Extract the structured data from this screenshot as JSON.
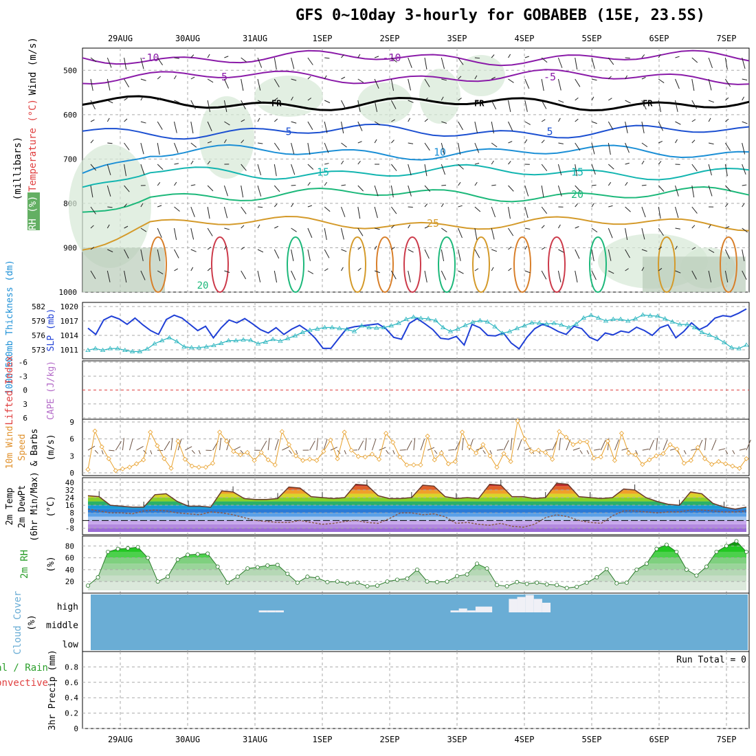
{
  "title": "GFS 0~10day 3-hourly for GOBABEB (15E, 23.5S)",
  "chart_data": [
    {
      "type": "contour",
      "panel": "upper-air",
      "ylabel_parts": [
        {
          "text": "RH (%)",
          "color": "#2a9e2a"
        },
        {
          "text": "Temperature (°C)",
          "color": "#e04040"
        },
        {
          "text": "Wind (m/s)",
          "color": "#000000"
        }
      ],
      "ylabel2": "(millibars)",
      "y_ticks": [
        "500",
        "600",
        "700",
        "800",
        "900",
        "1000"
      ],
      "ylim": [
        1000,
        450
      ],
      "top_dates": [
        "29AUG",
        "30AUG",
        "31AUG",
        "1SEP",
        "2SEP",
        "3SEP",
        "4SEP",
        "5SEP",
        "6SEP",
        "7SEP"
      ],
      "isotherms": [
        {
          "label": "-10",
          "level": 472,
          "color": "#8a1aa8"
        },
        {
          "label": "-5",
          "level": 515,
          "color": "#8a1aa8"
        },
        {
          "label": "FR",
          "level": 575,
          "color": "#000000"
        },
        {
          "label": "5",
          "level": 638,
          "color": "#1b4fd1"
        },
        {
          "label": "10",
          "level": 685,
          "color": "#1b8fd6"
        },
        {
          "label": "15",
          "level": 730,
          "color": "#12b5b0"
        },
        {
          "label": "20",
          "level": 780,
          "color": "#1cb87a"
        },
        {
          "label": "25",
          "level": 845,
          "color": "#d49a2a"
        }
      ],
      "rh_labels": [
        "10",
        "30",
        "10",
        "10",
        "30",
        "10",
        "10",
        "10",
        "10",
        "30"
      ],
      "bottom_label_20": "20"
    },
    {
      "type": "line",
      "panel": "thickness-slp",
      "ylabel_left": "1000-500mb Thickness (dm)",
      "ylabel_right": "SLP (mb)",
      "left_ticks": [
        "582",
        "579",
        "576",
        "573"
      ],
      "right_ticks": [
        "1020",
        "1017",
        "1014",
        "1011"
      ],
      "ylim_slp": [
        1010,
        1020
      ],
      "ylim_thk": [
        572,
        583
      ],
      "series": [
        {
          "name": "SLP (mb)",
          "color": "#1f3fd6",
          "values": [
            1015.5,
            1014.2,
            1017.2,
            1018.0,
            1017.4,
            1016.3,
            1017.6,
            1016.2,
            1015.0,
            1014.2,
            1017.3,
            1018.2,
            1017.6,
            1016.3,
            1015.0,
            1015.9,
            1013.5,
            1015.6,
            1017.2,
            1016.6,
            1017.5,
            1016.4,
            1015.2,
            1014.5,
            1015.6,
            1014.2,
            1015.3,
            1016.1,
            1015.0,
            1013.4,
            1011.3,
            1011.3,
            1013.4,
            1015.4,
            1015.8,
            1016.0,
            1016.2,
            1016.4,
            1015.4,
            1013.6,
            1013.2,
            1016.5,
            1017.5,
            1016.4,
            1015.2,
            1013.4,
            1013.2,
            1013.8,
            1012.0,
            1016.3,
            1015.6,
            1014.0,
            1013.9,
            1014.5,
            1012.4,
            1011.2,
            1013.6,
            1015.4,
            1016.3,
            1015.7,
            1014.8,
            1014.2,
            1015.9,
            1015.4,
            1013.6,
            1012.9,
            1014.5,
            1014.1,
            1014.9,
            1014.6,
            1015.7,
            1015.0,
            1014.0,
            1015.6,
            1016.2,
            1013.5,
            1014.8,
            1016.6,
            1015.2,
            1016.0,
            1017.6,
            1018.1,
            1017.9,
            1018.6,
            1019.5
          ]
        },
        {
          "name": "1000-500mb Thickness (dm)",
          "color": "#2ab5bf",
          "values": [
            573.0,
            573.4,
            573.0,
            573.4,
            573.4,
            573.0,
            572.7,
            572.7,
            573.3,
            574.5,
            575.2,
            575.9,
            575.0,
            573.8,
            573.6,
            573.6,
            573.8,
            574.1,
            574.6,
            575.2,
            575.2,
            575.4,
            575.3,
            574.5,
            574.9,
            575.5,
            575.1,
            575.7,
            576.3,
            577.1,
            577.6,
            577.9,
            578.2,
            578.2,
            578.0,
            577.8,
            577.3,
            578.6,
            578.2,
            578.1,
            578.2,
            578.6,
            579.2,
            580.1,
            580.6,
            580.3,
            580.2,
            579.8,
            578.2,
            577.3,
            577.9,
            578.7,
            579.4,
            579.8,
            579.5,
            578.4,
            576.9,
            577.3,
            578.0,
            578.6,
            579.3,
            579.2,
            579.0,
            579.2,
            578.8,
            578.2,
            579.0,
            580.4,
            581.0,
            580.4,
            579.7,
            580.1,
            580.1,
            579.7,
            580.2,
            581.1,
            580.9,
            580.8,
            580.2,
            579.5,
            578.9,
            578.9,
            578.2,
            577.1,
            576.5,
            575.8,
            574.8,
            573.6,
            573.4,
            574.2
          ]
        }
      ]
    },
    {
      "type": "line",
      "panel": "lifted-cape",
      "ylabel_left": "Lifted Index",
      "ylabel_right": "CAPE (J/kg)",
      "left_ticks": [
        "-6",
        "-3",
        "0",
        "3",
        "6"
      ],
      "ylim": [
        6,
        -6
      ],
      "series": [
        {
          "name": "Lifted Index",
          "color": "#e04040",
          "values": []
        }
      ]
    },
    {
      "type": "line",
      "panel": "wind10m",
      "ylabel_parts": [
        {
          "text": "10m Wind",
          "color": "#e0902a"
        },
        {
          "text": "Speed",
          "color": "#e0902a"
        },
        {
          "text": "& Barbs",
          "color": "#000000"
        }
      ],
      "ylabel_unit": "(m/s)",
      "left_ticks": [
        "9",
        "6",
        "3",
        "0"
      ],
      "ylim": [
        0,
        9
      ],
      "series": [
        {
          "name": "10m Wind Speed",
          "color": "#e8a02a",
          "values": [
            0.6,
            7.4,
            4.6,
            2.5,
            0.4,
            0.7,
            1.0,
            1.6,
            2.3,
            7.2,
            4.8,
            2.5,
            0.8,
            5.6,
            2.4,
            1.2,
            1.0,
            1.0,
            1.7,
            7.2,
            5.6,
            3.8,
            3.2,
            3.6,
            2.2,
            3.6,
            2.3,
            1.4,
            7.3,
            5.0,
            3.0,
            2.2,
            2.4,
            2.2,
            3.8,
            5.8,
            2.5,
            7.2,
            4.0,
            2.9,
            2.8,
            3.3,
            2.4,
            7.0,
            5.4,
            2.8,
            1.4,
            1.4,
            1.4,
            6.5,
            2.3,
            3.5,
            1.6,
            2.0,
            7.2,
            4.6,
            3.5,
            5.0,
            3.0,
            1.0,
            3.4,
            2.0,
            9.2,
            6.0,
            3.8,
            4.0,
            3.6,
            2.4,
            7.3,
            6.3,
            5.0,
            5.5,
            5.5,
            2.6,
            2.8,
            5.6,
            2.2,
            7.0,
            3.5,
            3.2,
            1.5,
            2.3,
            3.0,
            3.4,
            5.0,
            4.2,
            1.7,
            2.2,
            4.5,
            2.5,
            1.5,
            2.0,
            1.6,
            1.2,
            0.8,
            2.5
          ]
        }
      ]
    },
    {
      "type": "area",
      "panel": "temp2m",
      "ylabel_parts": [
        {
          "text": "2m Temp",
          "color": "#000000"
        },
        {
          "text": "2m DewPt",
          "color": "#000000"
        },
        {
          "text": "(6hr Min/Max)",
          "color": "#000000"
        }
      ],
      "ylabel_unit": "(°C)",
      "left_ticks": [
        "40",
        "32",
        "24",
        "16",
        "8",
        "0",
        "-8"
      ],
      "ylim": [
        -12,
        42
      ],
      "series": [
        {
          "name": "2m Temp",
          "values": [
            26,
            25,
            16,
            15,
            14,
            14,
            27,
            28,
            20,
            15,
            15,
            14,
            31,
            30,
            23,
            22,
            22,
            23,
            35,
            34,
            25,
            24,
            23,
            24,
            38,
            37,
            26,
            23,
            23,
            24,
            37,
            36,
            25,
            23,
            24,
            23,
            38,
            37,
            25,
            25,
            23,
            24,
            39,
            38,
            25,
            24,
            23,
            24,
            33,
            32,
            24,
            20,
            17,
            16,
            30,
            28,
            18,
            14,
            12,
            14
          ]
        },
        {
          "name": "2m DewPt",
          "values": [
            12,
            10,
            8,
            8,
            7,
            10,
            11,
            10,
            8,
            7,
            6,
            9,
            8,
            6,
            3,
            0,
            -1,
            -2,
            -2,
            0,
            -2,
            -4,
            -3,
            -1,
            0,
            -2,
            -3,
            2,
            8,
            8,
            6,
            7,
            4,
            -3,
            -2,
            -4,
            -5,
            -3,
            -6,
            -7,
            -4,
            3,
            6,
            4,
            0,
            -2,
            -3,
            5,
            10,
            10,
            9,
            8,
            9,
            9,
            11,
            11,
            10,
            9,
            9,
            10
          ]
        }
      ]
    },
    {
      "type": "area",
      "panel": "rh2m",
      "ylabel": "2m RH",
      "ylabel_unit": "(%)",
      "left_ticks": [
        "80",
        "60",
        "40",
        "20"
      ],
      "ylim": [
        5,
        92
      ],
      "series": [
        {
          "name": "2m RH",
          "values": [
            13,
            27,
            70,
            75,
            76,
            78,
            60,
            20,
            28,
            57,
            65,
            66,
            67,
            45,
            18,
            28,
            42,
            44,
            47,
            48,
            33,
            18,
            28,
            26,
            19,
            20,
            17,
            18,
            12,
            13,
            20,
            23,
            25,
            40,
            20,
            19,
            20,
            29,
            32,
            50,
            42,
            14,
            12,
            19,
            16,
            18,
            15,
            14,
            9,
            11,
            18,
            27,
            41,
            17,
            18,
            40,
            50,
            75,
            82,
            70,
            40,
            30,
            45,
            70,
            80,
            88,
            70
          ]
        }
      ]
    },
    {
      "type": "bar",
      "panel": "cloud",
      "ylabel": "Cloud Cover",
      "ylabel_unit": "(%)",
      "row_labels": [
        "high",
        "middle",
        "low"
      ],
      "high_cloud": [
        0,
        0,
        0,
        0,
        0,
        0,
        0,
        0,
        0,
        0,
        0,
        0,
        0,
        0,
        0,
        0,
        0,
        0,
        0,
        0,
        0,
        1,
        1,
        1,
        0,
        0,
        0,
        0,
        0,
        0,
        0,
        0,
        0,
        0,
        0,
        0,
        0,
        0,
        0,
        0,
        0,
        0,
        0,
        0,
        1,
        2,
        1,
        3,
        3,
        0,
        0,
        7,
        8,
        9,
        7,
        5,
        0,
        0,
        0,
        0,
        0,
        0,
        0,
        0,
        0,
        0,
        0,
        0,
        0,
        0,
        0,
        0,
        0,
        0,
        0,
        0,
        0,
        0,
        0,
        0
      ]
    },
    {
      "type": "bar",
      "panel": "precip",
      "ylabel_parts": [
        {
          "text": "Total / Rain",
          "color": "#2a9e2a"
        },
        {
          "text": "Convective",
          "color": "#e04040"
        }
      ],
      "ylabel2": "3hr Precip (mm)",
      "left_ticks": [
        "0.8",
        "0.6",
        "0.4",
        "0.2",
        "0"
      ],
      "ylim": [
        0,
        1
      ],
      "run_total": "Run Total = 0",
      "bottom_dates": [
        "29AUG",
        "30AUG",
        "31AUG",
        "1SEP",
        "2SEP",
        "3SEP",
        "4SEP",
        "5SEP",
        "6SEP",
        "7SEP"
      ],
      "values": []
    }
  ]
}
